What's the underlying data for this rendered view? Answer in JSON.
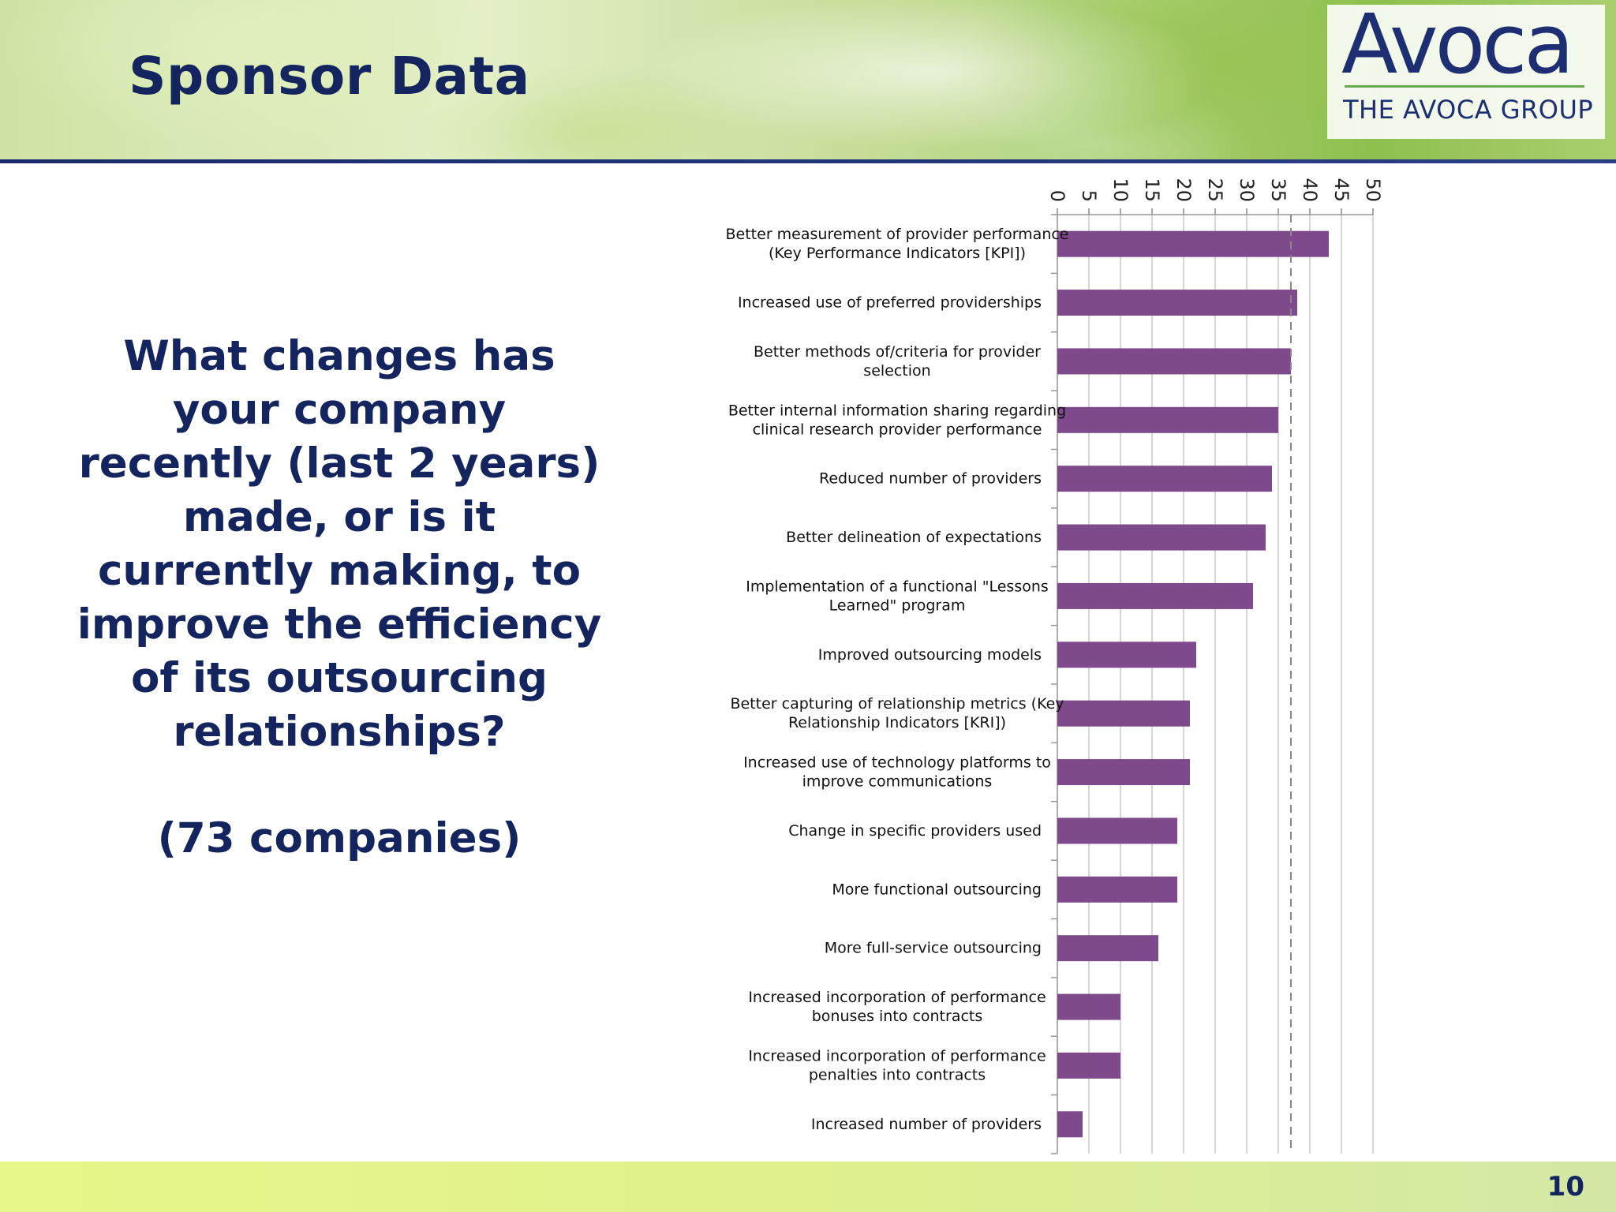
{
  "slide": {
    "title": "Sponsor Data",
    "question": "What changes has your company recently (last 2 years) made, or is it currently making, to improve the efficiency of its outsourcing relationships?",
    "companies": "(73 companies)",
    "page_number": "10"
  },
  "logo": {
    "word": "Avoca",
    "subtitle": "THE AVOCA GROUP"
  },
  "colors": {
    "title": "#14245e",
    "bar": "#7f4a8c",
    "accent_green": "#6aa84f"
  },
  "chart_data": {
    "type": "bar",
    "orientation": "horizontal",
    "x_axis_position": "top",
    "xlim": [
      0,
      50
    ],
    "x_ticks": [
      "0",
      "5",
      "10",
      "15",
      "20",
      "25",
      "30",
      "35",
      "40",
      "45",
      "50"
    ],
    "grid": true,
    "reference_line": 37,
    "categories": [
      [
        "Better measurement of provider performance",
        "(Key Performance Indicators [KPI])"
      ],
      [
        "Increased use of preferred providerships"
      ],
      [
        "Better methods of/criteria for provider",
        "selection"
      ],
      [
        "Better internal information sharing regarding",
        "clinical research provider performance"
      ],
      [
        "Reduced number of providers"
      ],
      [
        "Better delineation of expectations"
      ],
      [
        "Implementation of a functional \"Lessons",
        "Learned\" program"
      ],
      [
        "Improved outsourcing models"
      ],
      [
        "Better capturing of relationship metrics (Key",
        "Relationship Indicators [KRI])"
      ],
      [
        "Increased use of technology platforms to",
        "improve communications"
      ],
      [
        "Change in specific providers used"
      ],
      [
        "More functional outsourcing"
      ],
      [
        "More full-service outsourcing"
      ],
      [
        "Increased incorporation of performance",
        "bonuses into contracts"
      ],
      [
        "Increased incorporation of performance",
        "penalties into contracts"
      ],
      [
        "Increased number of providers"
      ]
    ],
    "values": [
      43,
      38,
      37,
      35,
      34,
      33,
      31,
      22,
      21,
      21,
      19,
      19,
      16,
      10,
      10,
      4
    ]
  }
}
